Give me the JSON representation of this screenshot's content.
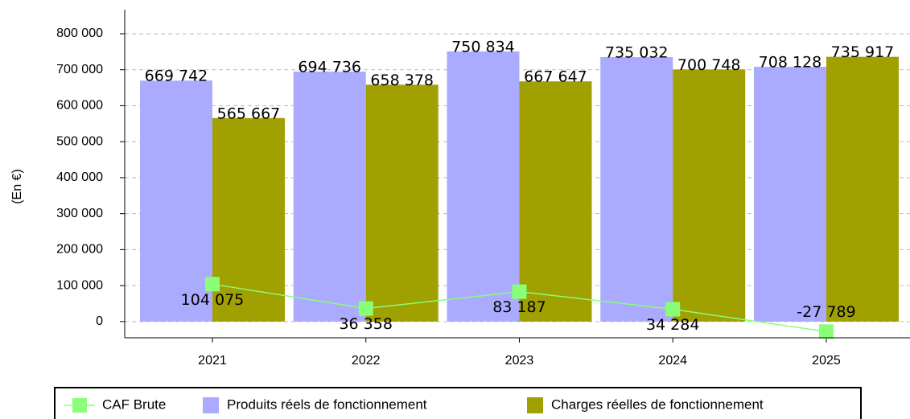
{
  "chart_data": {
    "type": "bar_line",
    "y_label": "(En €)",
    "categories": [
      "2021",
      "2022",
      "2023",
      "2024",
      "2025"
    ],
    "series": [
      {
        "name": "CAF Brute",
        "type": "line",
        "color": "#88ff77",
        "values": [
          104075,
          36358,
          83187,
          34284,
          -27789
        ],
        "value_labels": [
          "104 075",
          "36 358",
          "83 187",
          "34 284",
          "-27 789"
        ]
      },
      {
        "name": "Produits réels de fonctionnement",
        "type": "bar",
        "color": "#aaaaff",
        "values": [
          669742,
          694736,
          750834,
          735032,
          708128
        ],
        "value_labels": [
          "669 742",
          "694 736",
          "750 834",
          "735 032",
          "708 128"
        ]
      },
      {
        "name": "Charges réelles de fonctionnement",
        "type": "bar",
        "color": "#a0a000",
        "values": [
          565667,
          658378,
          667647,
          700748,
          735917
        ],
        "value_labels": [
          "565 667",
          "658 378",
          "667 647",
          "700 748",
          "735 917"
        ]
      }
    ],
    "ylim": [
      -45000,
      867000
    ],
    "yticks": [
      0,
      {
        "value": 100000,
        "label": "100 000"
      },
      {
        "value": 200000,
        "label": "200 000"
      },
      {
        "value": 300000,
        "label": "300 000"
      },
      {
        "value": 400000,
        "label": "400 000"
      },
      {
        "value": 500000,
        "label": "500 000"
      },
      {
        "value": 600000,
        "label": "600 000"
      },
      {
        "value": 700000,
        "label": "700 000"
      },
      {
        "value": 800000,
        "label": "800 000"
      }
    ],
    "grid": true,
    "legend": "bottom"
  }
}
